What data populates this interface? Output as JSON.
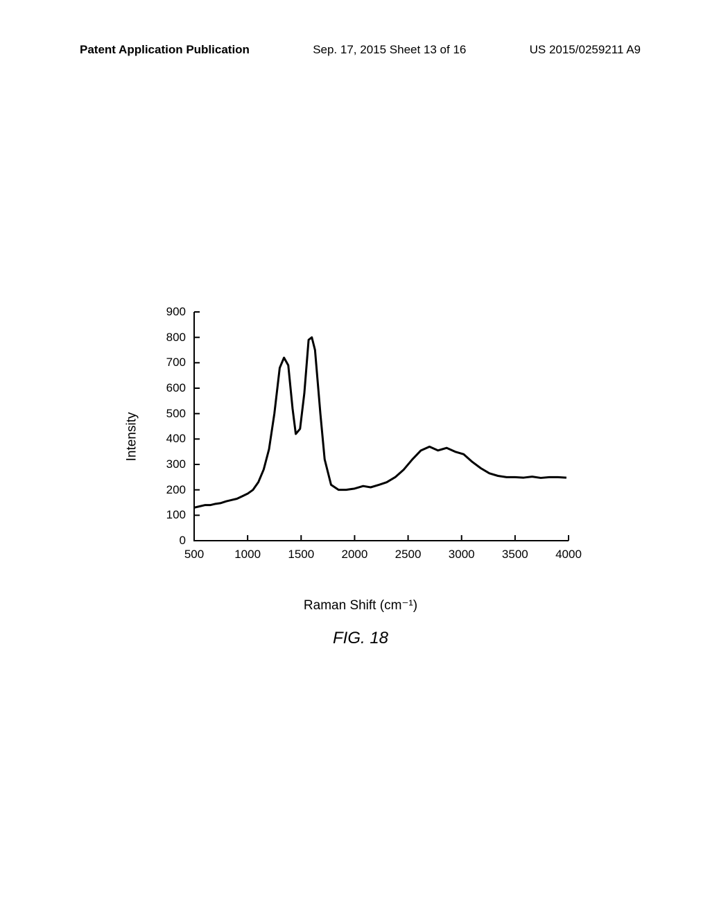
{
  "header": {
    "left": "Patent Application Publication",
    "center": "Sep. 17, 2015  Sheet 13 of 16",
    "right": "US 2015/0259211 A9"
  },
  "chart": {
    "type": "line",
    "figure_label": "FIG. 18",
    "xlabel": "Raman Shift (cm⁻¹)",
    "ylabel": "Intensity",
    "xlim": [
      500,
      4000
    ],
    "ylim": [
      0,
      900
    ],
    "xticks": [
      500,
      1000,
      1500,
      2000,
      2500,
      3000,
      3500,
      4000
    ],
    "yticks": [
      0,
      100,
      200,
      300,
      400,
      500,
      600,
      700,
      800,
      900
    ],
    "line_color": "#000000",
    "line_width": 3,
    "background_color": "#ffffff",
    "axis_color": "#000000",
    "tick_fontsize": 17,
    "label_fontsize": 19,
    "figure_fontsize": 24,
    "data": [
      [
        500,
        130
      ],
      [
        550,
        135
      ],
      [
        600,
        140
      ],
      [
        650,
        140
      ],
      [
        700,
        145
      ],
      [
        750,
        148
      ],
      [
        800,
        155
      ],
      [
        850,
        160
      ],
      [
        900,
        165
      ],
      [
        950,
        175
      ],
      [
        1000,
        185
      ],
      [
        1050,
        200
      ],
      [
        1100,
        230
      ],
      [
        1150,
        280
      ],
      [
        1200,
        360
      ],
      [
        1250,
        500
      ],
      [
        1300,
        680
      ],
      [
        1340,
        720
      ],
      [
        1380,
        690
      ],
      [
        1420,
        520
      ],
      [
        1450,
        420
      ],
      [
        1490,
        440
      ],
      [
        1530,
        580
      ],
      [
        1570,
        790
      ],
      [
        1600,
        800
      ],
      [
        1630,
        750
      ],
      [
        1680,
        500
      ],
      [
        1720,
        320
      ],
      [
        1780,
        220
      ],
      [
        1850,
        200
      ],
      [
        1920,
        200
      ],
      [
        2000,
        205
      ],
      [
        2080,
        215
      ],
      [
        2150,
        210
      ],
      [
        2230,
        220
      ],
      [
        2300,
        230
      ],
      [
        2380,
        250
      ],
      [
        2460,
        280
      ],
      [
        2540,
        320
      ],
      [
        2620,
        355
      ],
      [
        2700,
        370
      ],
      [
        2780,
        355
      ],
      [
        2860,
        365
      ],
      [
        2940,
        350
      ],
      [
        3020,
        340
      ],
      [
        3100,
        310
      ],
      [
        3180,
        285
      ],
      [
        3260,
        265
      ],
      [
        3340,
        255
      ],
      [
        3420,
        250
      ],
      [
        3500,
        250
      ],
      [
        3580,
        248
      ],
      [
        3660,
        252
      ],
      [
        3740,
        247
      ],
      [
        3820,
        250
      ],
      [
        3900,
        250
      ],
      [
        3980,
        248
      ]
    ]
  }
}
